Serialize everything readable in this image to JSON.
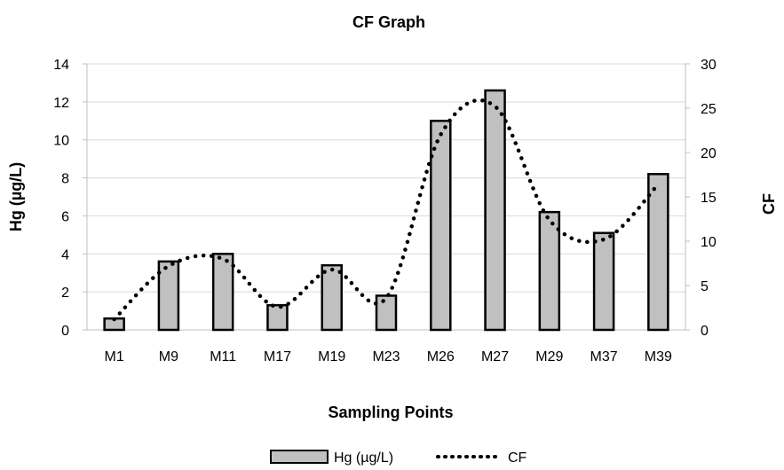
{
  "chart_data": {
    "type": "bar",
    "title": "CF Graph",
    "xlabel": "Sampling Points",
    "ylabel": "Hg (µg/L)",
    "y2label": "CF",
    "categories": [
      "M1",
      "M9",
      "M11",
      "M17",
      "M19",
      "M23",
      "M26",
      "M27",
      "M29",
      "M37",
      "M39"
    ],
    "series": [
      {
        "name": "Hg (µg/L)",
        "type": "bar",
        "axis": "left",
        "values": [
          0.6,
          3.6,
          4.0,
          1.3,
          3.4,
          1.8,
          11.0,
          12.6,
          6.2,
          5.1,
          8.2
        ]
      },
      {
        "name": "CF",
        "type": "line",
        "axis": "right",
        "style": "dotted",
        "values": [
          1.2,
          7.2,
          8.0,
          2.6,
          6.8,
          3.6,
          22.0,
          25.2,
          12.4,
          10.2,
          16.4
        ]
      }
    ],
    "ylim": [
      0,
      14
    ],
    "yticks": [
      "0",
      "2",
      "4",
      "6",
      "8",
      "10",
      "12",
      "14"
    ],
    "y2lim": [
      0,
      30
    ],
    "y2ticks": [
      "0",
      "5",
      "10",
      "15",
      "20",
      "25",
      "30"
    ],
    "grid": true,
    "legend": "bottom-center",
    "colors": {
      "bar_fill": "#c0c0c0",
      "bar_stroke": "#000000",
      "grid": "#d9d9d9",
      "line": "#000000"
    }
  }
}
